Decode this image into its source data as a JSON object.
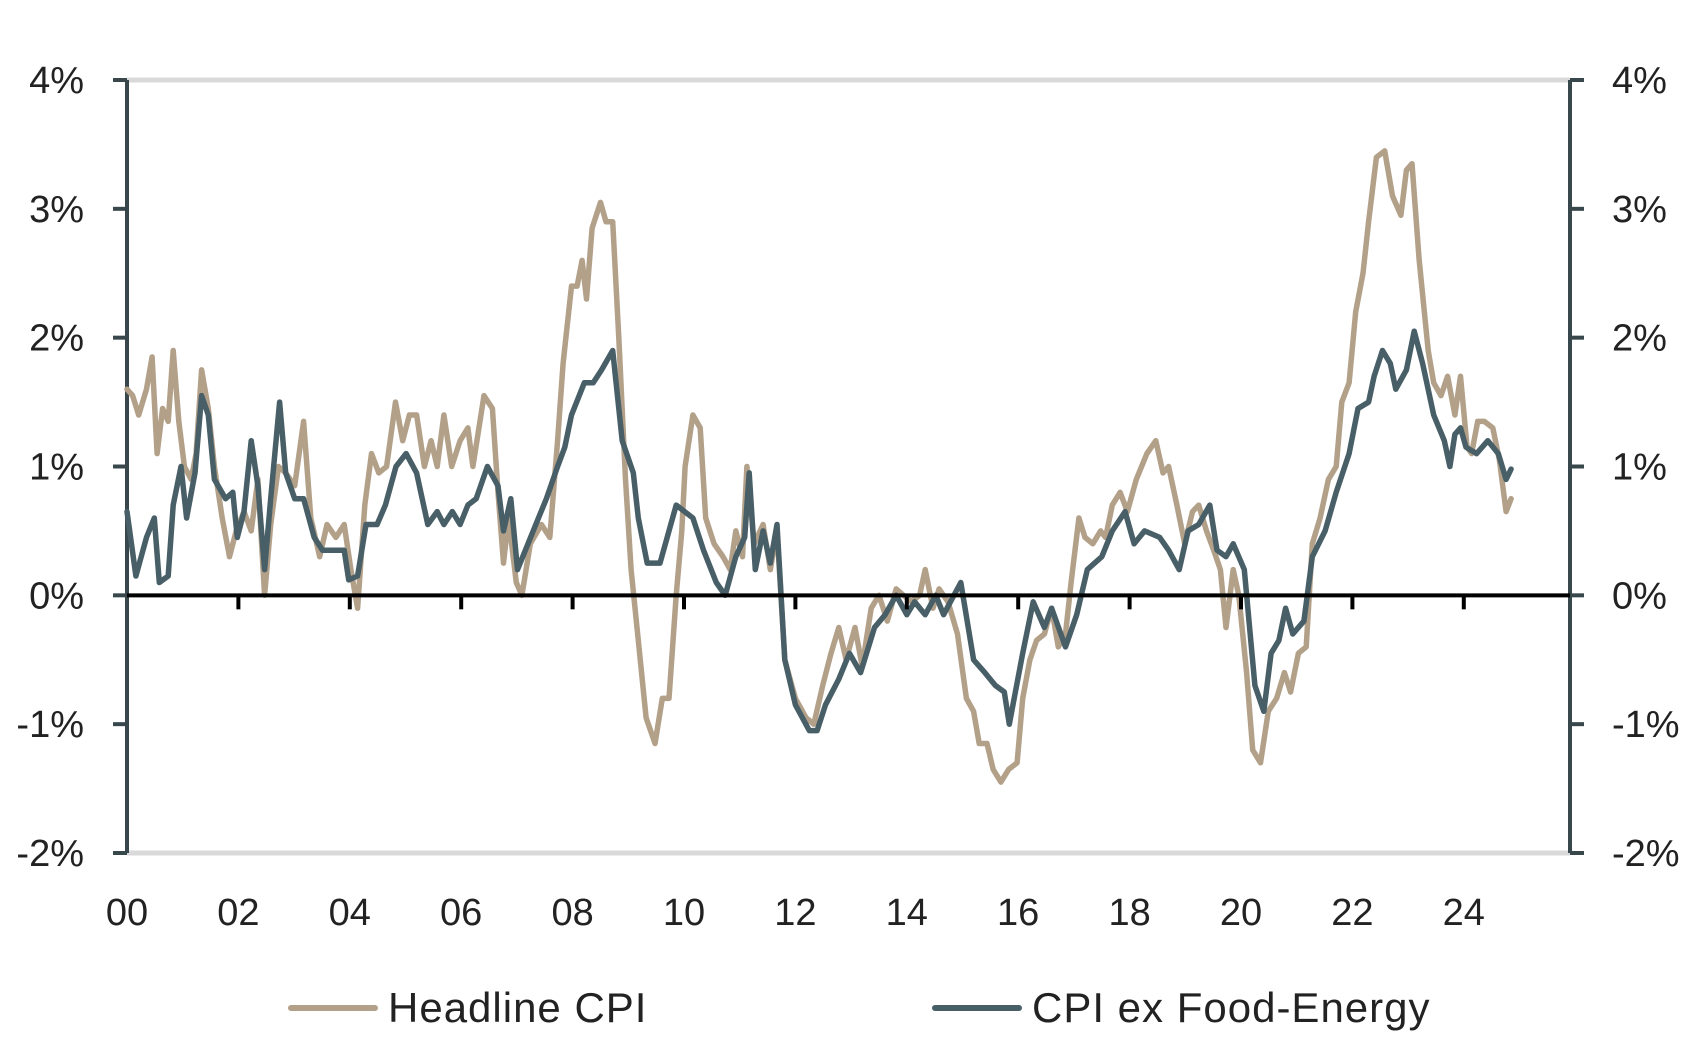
{
  "chart_data": {
    "type": "line",
    "title": "",
    "xlabel": "",
    "ylabel": "",
    "xlim": [
      0,
      25.9
    ],
    "ylim": [
      -2,
      4
    ],
    "x_ticks": [
      0,
      2,
      4,
      6,
      8,
      10,
      12,
      14,
      16,
      18,
      20,
      22,
      24
    ],
    "x_tick_labels": [
      "00",
      "02",
      "04",
      "06",
      "08",
      "10",
      "12",
      "14",
      "16",
      "18",
      "20",
      "22",
      "24"
    ],
    "y_ticks": [
      -2,
      -1,
      0,
      1,
      2,
      3,
      4
    ],
    "y_tick_labels": [
      "-2%",
      "-1%",
      "0%",
      "1%",
      "2%",
      "3%",
      "4%"
    ],
    "y_axis_right": true,
    "grid": false,
    "legend_position": "bottom",
    "colors": {
      "headline": "#b3a089",
      "core": "#485f68",
      "axis": "#37474b",
      "zero_line": "#000000",
      "bound_line": "#d9d9d9"
    },
    "series": [
      {
        "name": "Headline CPI",
        "color": "#b3a089",
        "x": [
          0,
          0.1,
          0.21,
          0.35,
          0.45,
          0.54,
          0.64,
          0.74,
          0.83,
          0.93,
          1.03,
          1.15,
          1.24,
          1.34,
          1.46,
          1.57,
          1.71,
          1.84,
          1.96,
          2.1,
          2.23,
          2.35,
          2.47,
          2.58,
          2.72,
          2.85,
          3.01,
          3.17,
          3.3,
          3.46,
          3.59,
          3.75,
          3.9,
          4.02,
          4.14,
          4.27,
          4.39,
          4.52,
          4.66,
          4.82,
          4.95,
          5.07,
          5.2,
          5.34,
          5.46,
          5.57,
          5.69,
          5.83,
          5.98,
          6.12,
          6.21,
          6.41,
          6.56,
          6.66,
          6.76,
          6.85,
          6.99,
          7.09,
          7.24,
          7.44,
          7.59,
          7.73,
          7.83,
          7.98,
          8.08,
          8.17,
          8.25,
          8.35,
          8.5,
          8.6,
          8.72,
          8.83,
          8.95,
          9.05,
          9.18,
          9.32,
          9.48,
          9.61,
          9.73,
          9.86,
          9.96,
          10.02,
          10.16,
          10.29,
          10.39,
          10.54,
          10.7,
          10.83,
          10.93,
          11.05,
          11.13,
          11.26,
          11.42,
          11.55,
          11.67,
          11.81,
          12.0,
          12.19,
          12.33,
          12.49,
          12.64,
          12.78,
          12.91,
          13.07,
          13.2,
          13.36,
          13.5,
          13.65,
          13.81,
          13.94,
          14.08,
          14.23,
          14.33,
          14.47,
          14.58,
          14.74,
          14.91,
          15.07,
          15.2,
          15.3,
          15.44,
          15.55,
          15.69,
          15.83,
          15.98,
          16.08,
          16.21,
          16.33,
          16.47,
          16.6,
          16.72,
          16.85,
          16.95,
          17.09,
          17.2,
          17.34,
          17.48,
          17.57,
          17.69,
          17.83,
          17.96,
          18.12,
          18.31,
          18.47,
          18.6,
          18.7,
          18.85,
          18.99,
          19.13,
          19.24,
          19.38,
          19.51,
          19.63,
          19.73,
          19.86,
          19.96,
          20.1,
          20.21,
          20.35,
          20.49,
          20.64,
          20.78,
          20.89,
          21.03,
          21.17,
          21.28,
          21.42,
          21.57,
          21.71,
          21.81,
          21.94,
          22.06,
          22.19,
          22.29,
          22.43,
          22.58,
          22.72,
          22.87,
          22.97,
          23.07,
          23.2,
          23.36,
          23.46,
          23.59,
          23.71,
          23.84,
          23.94,
          24.06,
          24.14,
          24.25,
          24.37,
          24.52,
          24.64,
          24.76,
          24.85
        ],
        "values": [
          1.6,
          1.55,
          1.4,
          1.6,
          1.85,
          1.1,
          1.45,
          1.35,
          1.9,
          1.35,
          1.0,
          0.9,
          1.1,
          1.75,
          1.45,
          1.0,
          0.6,
          0.3,
          0.5,
          0.65,
          0.5,
          0.9,
          0.0,
          0.55,
          1.0,
          0.95,
          0.85,
          1.35,
          0.6,
          0.3,
          0.55,
          0.45,
          0.55,
          0.2,
          -0.1,
          0.7,
          1.1,
          0.95,
          1.0,
          1.5,
          1.2,
          1.4,
          1.4,
          1.0,
          1.2,
          1.0,
          1.4,
          1.0,
          1.2,
          1.3,
          1.0,
          1.55,
          1.45,
          0.8,
          0.25,
          0.6,
          0.1,
          0.0,
          0.4,
          0.55,
          0.45,
          1.2,
          1.8,
          2.4,
          2.4,
          2.6,
          2.3,
          2.85,
          3.05,
          2.9,
          2.9,
          2.0,
          0.9,
          0.2,
          -0.35,
          -0.95,
          -1.15,
          -0.8,
          -0.8,
          0.0,
          0.5,
          1.0,
          1.4,
          1.3,
          0.6,
          0.4,
          0.3,
          0.2,
          0.5,
          0.3,
          1.0,
          0.4,
          0.55,
          0.2,
          0.5,
          -0.5,
          -0.8,
          -0.95,
          -1.0,
          -0.7,
          -0.45,
          -0.25,
          -0.5,
          -0.25,
          -0.55,
          -0.1,
          0.0,
          -0.2,
          0.05,
          0.0,
          -0.05,
          0.0,
          0.2,
          -0.1,
          0.05,
          -0.05,
          -0.3,
          -0.8,
          -0.9,
          -1.15,
          -1.15,
          -1.35,
          -1.45,
          -1.35,
          -1.3,
          -0.8,
          -0.5,
          -0.35,
          -0.3,
          -0.1,
          -0.4,
          -0.3,
          0.1,
          0.6,
          0.45,
          0.4,
          0.5,
          0.45,
          0.7,
          0.8,
          0.65,
          0.9,
          1.1,
          1.2,
          0.95,
          1.0,
          0.7,
          0.4,
          0.65,
          0.7,
          0.5,
          0.35,
          0.2,
          -0.25,
          0.2,
          0.0,
          -0.6,
          -1.2,
          -1.3,
          -0.9,
          -0.8,
          -0.6,
          -0.75,
          -0.45,
          -0.4,
          0.4,
          0.6,
          0.9,
          1.0,
          1.5,
          1.65,
          2.2,
          2.5,
          2.9,
          3.4,
          3.45,
          3.1,
          2.95,
          3.3,
          3.35,
          2.6,
          1.9,
          1.65,
          1.55,
          1.7,
          1.4,
          1.7,
          1.15,
          1.1,
          1.35,
          1.35,
          1.3,
          1.05,
          0.65,
          0.75
        ]
      },
      {
        "name": "CPI ex Food-Energy",
        "color": "#485f68",
        "x": [
          0,
          0.16,
          0.35,
          0.49,
          0.58,
          0.74,
          0.83,
          0.97,
          1.07,
          1.22,
          1.34,
          1.46,
          1.57,
          1.77,
          1.9,
          1.98,
          2.1,
          2.23,
          2.35,
          2.47,
          2.58,
          2.74,
          2.85,
          3.01,
          3.17,
          3.36,
          3.51,
          3.71,
          3.9,
          3.98,
          4.14,
          4.29,
          4.49,
          4.64,
          4.83,
          5.01,
          5.2,
          5.4,
          5.57,
          5.69,
          5.84,
          5.98,
          6.12,
          6.27,
          6.47,
          6.66,
          6.76,
          6.89,
          7.01,
          7.2,
          7.34,
          7.53,
          7.73,
          7.86,
          7.98,
          8.21,
          8.37,
          8.52,
          8.72,
          8.89,
          9.09,
          9.18,
          9.34,
          9.57,
          9.86,
          10.16,
          10.35,
          10.58,
          10.74,
          10.93,
          11.09,
          11.17,
          11.28,
          11.42,
          11.55,
          11.67,
          11.81,
          12.0,
          12.25,
          12.39,
          12.54,
          12.78,
          12.97,
          13.17,
          13.42,
          13.61,
          13.81,
          14.0,
          14.14,
          14.33,
          14.52,
          14.66,
          14.97,
          15.2,
          15.4,
          15.59,
          15.75,
          15.84,
          16.08,
          16.27,
          16.47,
          16.6,
          16.85,
          17.05,
          17.24,
          17.5,
          17.69,
          17.92,
          18.08,
          18.27,
          18.54,
          18.7,
          18.89,
          19.05,
          19.24,
          19.44,
          19.57,
          19.73,
          19.86,
          20.06,
          20.25,
          20.41,
          20.54,
          20.68,
          20.8,
          20.93,
          21.13,
          21.28,
          21.51,
          21.71,
          21.94,
          22.1,
          22.29,
          22.39,
          22.54,
          22.68,
          22.78,
          22.97,
          23.11,
          23.26,
          23.46,
          23.65,
          23.75,
          23.84,
          23.94,
          24.04,
          24.23,
          24.43,
          24.62,
          24.76,
          24.85
        ],
        "values": [
          0.65,
          0.15,
          0.45,
          0.6,
          0.1,
          0.15,
          0.7,
          1.0,
          0.6,
          0.95,
          1.55,
          1.4,
          0.9,
          0.75,
          0.8,
          0.45,
          0.65,
          1.2,
          0.85,
          0.2,
          0.75,
          1.5,
          0.95,
          0.75,
          0.75,
          0.45,
          0.35,
          0.35,
          0.35,
          0.12,
          0.15,
          0.55,
          0.55,
          0.7,
          1.0,
          1.1,
          0.95,
          0.55,
          0.65,
          0.55,
          0.65,
          0.55,
          0.7,
          0.75,
          1.0,
          0.85,
          0.5,
          0.75,
          0.2,
          0.4,
          0.55,
          0.75,
          1.0,
          1.15,
          1.4,
          1.65,
          1.65,
          1.75,
          1.9,
          1.2,
          0.95,
          0.6,
          0.25,
          0.25,
          0.7,
          0.6,
          0.35,
          0.1,
          0.0,
          0.3,
          0.45,
          0.95,
          0.2,
          0.5,
          0.25,
          0.55,
          -0.5,
          -0.85,
          -1.05,
          -1.05,
          -0.85,
          -0.65,
          -0.45,
          -0.6,
          -0.25,
          -0.15,
          0.0,
          -0.15,
          -0.05,
          -0.15,
          0.0,
          -0.15,
          0.1,
          -0.5,
          -0.6,
          -0.7,
          -0.75,
          -1.0,
          -0.45,
          -0.05,
          -0.25,
          -0.1,
          -0.4,
          -0.15,
          0.2,
          0.3,
          0.5,
          0.65,
          0.4,
          0.5,
          0.45,
          0.35,
          0.2,
          0.5,
          0.55,
          0.7,
          0.35,
          0.3,
          0.4,
          0.2,
          -0.7,
          -0.9,
          -0.45,
          -0.35,
          -0.1,
          -0.3,
          -0.2,
          0.3,
          0.5,
          0.8,
          1.1,
          1.45,
          1.5,
          1.7,
          1.9,
          1.8,
          1.6,
          1.75,
          2.05,
          1.8,
          1.4,
          1.2,
          1.0,
          1.25,
          1.3,
          1.15,
          1.1,
          1.2,
          1.1,
          0.9,
          0.98
        ]
      }
    ]
  }
}
